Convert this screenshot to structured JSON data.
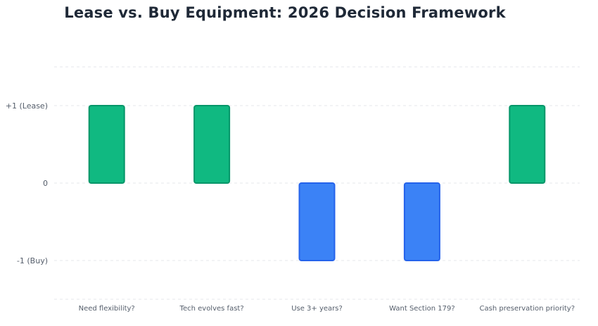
{
  "chart_data": {
    "type": "bar",
    "title": "Lease vs. Buy Equipment: 2026 Decision Framework",
    "xlabel": "",
    "ylabel": "",
    "categories": [
      "Need flexibility?",
      "Tech evolves fast?",
      "Use 3+ years?",
      "Want Section 179?",
      "Cash preservation priority?"
    ],
    "values": [
      1,
      1,
      -1,
      -1,
      1
    ],
    "ylim": [
      -1.5,
      1.5
    ],
    "yticks": [
      {
        "value": 1,
        "label": "+1 (Lease)"
      },
      {
        "value": 0,
        "label": "0"
      },
      {
        "value": -1,
        "label": "-1 (Buy)"
      }
    ],
    "grid": true,
    "colors": {
      "positive_fill": "#10b981",
      "positive_stroke": "#059669",
      "negative_fill": "#3b82f6",
      "negative_stroke": "#2563eb",
      "grid": "#e5e7eb"
    }
  }
}
